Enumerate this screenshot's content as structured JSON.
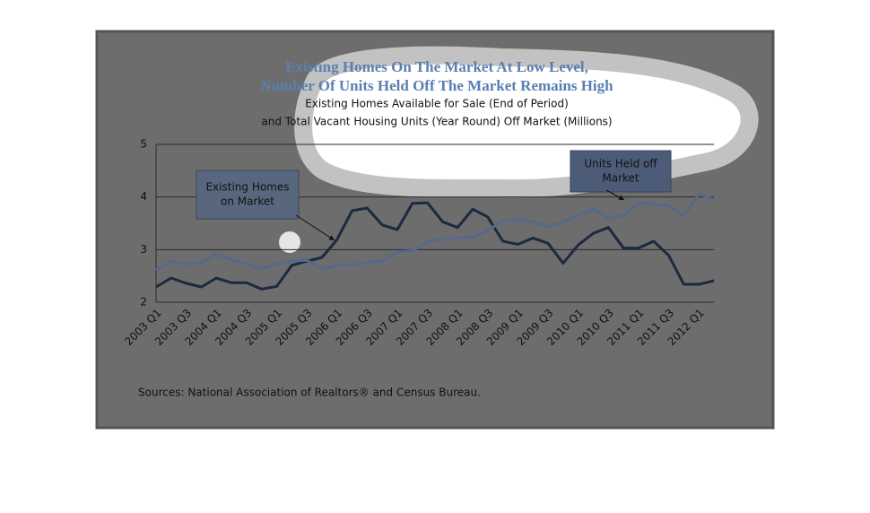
{
  "chart_data": {
    "type": "line",
    "title": [
      "Existing Homes On The Market At Low Level,",
      "Number Of Units Held Off The Market Remains High"
    ],
    "subtitle": [
      "Existing Homes Available for Sale (End of Period)",
      "and Total Vacant Housing Units (Year Round) Off Market (Millions)"
    ],
    "categories": [
      "2003 Q1",
      null,
      "2003 Q3",
      null,
      "2004 Q1",
      null,
      "2004 Q3",
      null,
      "2005 Q1",
      null,
      "2005 Q3",
      null,
      "2006 Q1",
      null,
      "2006 Q3",
      null,
      "2007 Q1",
      null,
      "2007 Q3",
      null,
      "2008 Q1",
      null,
      "2008 Q3",
      null,
      "2009 Q1",
      null,
      "2009 Q3",
      null,
      "2010 Q1",
      null,
      "2010 Q3",
      null,
      "2011 Q1",
      null,
      "2011 Q3",
      null,
      "2012 Q1",
      null
    ],
    "series": [
      {
        "color": "#1c2940",
        "values": [
          2.29,
          2.46,
          2.36,
          2.29,
          2.46,
          2.37,
          2.37,
          2.25,
          2.3,
          2.7,
          2.78,
          2.85,
          3.19,
          3.74,
          3.79,
          3.47,
          3.38,
          3.88,
          3.89,
          3.53,
          3.42,
          3.77,
          3.62,
          3.16,
          3.1,
          3.22,
          3.12,
          2.74,
          3.09,
          3.31,
          3.42,
          3.03,
          3.03,
          3.16,
          2.89,
          2.34,
          2.34,
          2.41
        ]
      },
      {
        "color": "#56698a",
        "values": [
          2.61,
          2.78,
          2.73,
          2.76,
          2.91,
          2.81,
          2.73,
          2.63,
          2.73,
          2.78,
          2.8,
          2.63,
          2.7,
          2.7,
          2.76,
          2.78,
          2.96,
          2.98,
          3.14,
          3.21,
          3.22,
          3.24,
          3.36,
          3.55,
          3.57,
          3.53,
          3.43,
          3.53,
          3.65,
          3.77,
          3.6,
          3.65,
          3.89,
          3.86,
          3.84,
          3.63,
          4.06,
          3.95
        ]
      }
    ],
    "ylim": [
      2,
      5
    ],
    "yticks": [
      2,
      3,
      4,
      5
    ],
    "grid": true,
    "annotations": [
      {
        "lines": [
          "Existing Homes",
          "on Market"
        ]
      },
      {
        "lines": [
          "Units Held off",
          "Market"
        ]
      }
    ],
    "source": "Sources: National Association of Realtors® and Census Bureau."
  }
}
